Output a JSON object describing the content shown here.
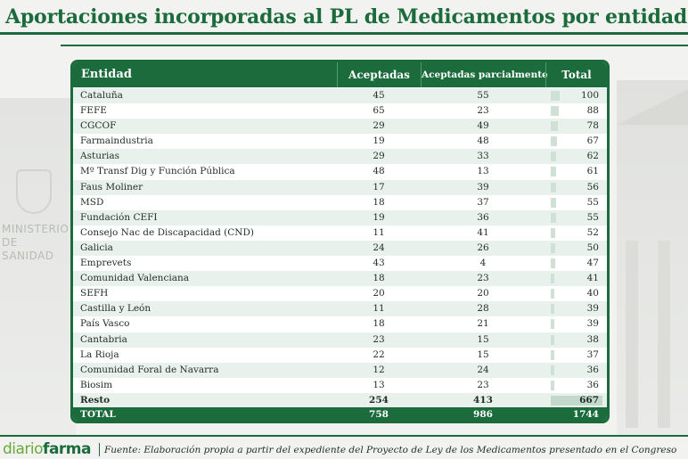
{
  "title": "Aportaciones incorporadas al PL de Medicamentos por entidades",
  "colors": {
    "accent": "#1b6b3c",
    "row_alt": "#e9f1ec",
    "bar": "#cfe0d5",
    "brand_light": "#6aaa3a"
  },
  "brand": {
    "part1": "diario",
    "part2": "farma"
  },
  "source": "Fuente: Elaboración propia a partir del expediente del Proyecto de Ley de los Medicamentos presentado en el Congreso",
  "chart_data": {
    "type": "table",
    "columns": [
      "Entidad",
      "Aceptadas",
      "Aceptadas parcialmente",
      "Total"
    ],
    "rows": [
      {
        "entidad": "Cataluña",
        "aceptadas": 45,
        "parcial": 55,
        "total": 100
      },
      {
        "entidad": "FEFE",
        "aceptadas": 65,
        "parcial": 23,
        "total": 88
      },
      {
        "entidad": "CGCOF",
        "aceptadas": 29,
        "parcial": 49,
        "total": 78
      },
      {
        "entidad": "Farmaindustria",
        "aceptadas": 19,
        "parcial": 48,
        "total": 67
      },
      {
        "entidad": "Asturias",
        "aceptadas": 29,
        "parcial": 33,
        "total": 62
      },
      {
        "entidad": "Mº Transf Dig y Función Pública",
        "aceptadas": 48,
        "parcial": 13,
        "total": 61
      },
      {
        "entidad": "Faus Moliner",
        "aceptadas": 17,
        "parcial": 39,
        "total": 56
      },
      {
        "entidad": "MSD",
        "aceptadas": 18,
        "parcial": 37,
        "total": 55
      },
      {
        "entidad": "Fundación CEFI",
        "aceptadas": 19,
        "parcial": 36,
        "total": 55
      },
      {
        "entidad": "Consejo Nac de Discapacidad (CND)",
        "aceptadas": 11,
        "parcial": 41,
        "total": 52
      },
      {
        "entidad": "Galicia",
        "aceptadas": 24,
        "parcial": 26,
        "total": 50
      },
      {
        "entidad": "Emprevets",
        "aceptadas": 43,
        "parcial": 4,
        "total": 47
      },
      {
        "entidad": "Comunidad Valenciana",
        "aceptadas": 18,
        "parcial": 23,
        "total": 41
      },
      {
        "entidad": "SEFH",
        "aceptadas": 20,
        "parcial": 20,
        "total": 40
      },
      {
        "entidad": "Castilla y León",
        "aceptadas": 11,
        "parcial": 28,
        "total": 39
      },
      {
        "entidad": "País Vasco",
        "aceptadas": 18,
        "parcial": 21,
        "total": 39
      },
      {
        "entidad": "Cantabria",
        "aceptadas": 23,
        "parcial": 15,
        "total": 38
      },
      {
        "entidad": "La Rioja",
        "aceptadas": 22,
        "parcial": 15,
        "total": 37
      },
      {
        "entidad": "Comunidad Foral de Navarra",
        "aceptadas": 12,
        "parcial": 24,
        "total": 36
      },
      {
        "entidad": "Biosim",
        "aceptadas": 13,
        "parcial": 23,
        "total": 36
      },
      {
        "entidad": "Resto",
        "aceptadas": 254,
        "parcial": 413,
        "total": 667
      }
    ],
    "totals": {
      "label": "TOTAL",
      "aceptadas": 758,
      "parcial": 986,
      "total": 1744
    }
  }
}
